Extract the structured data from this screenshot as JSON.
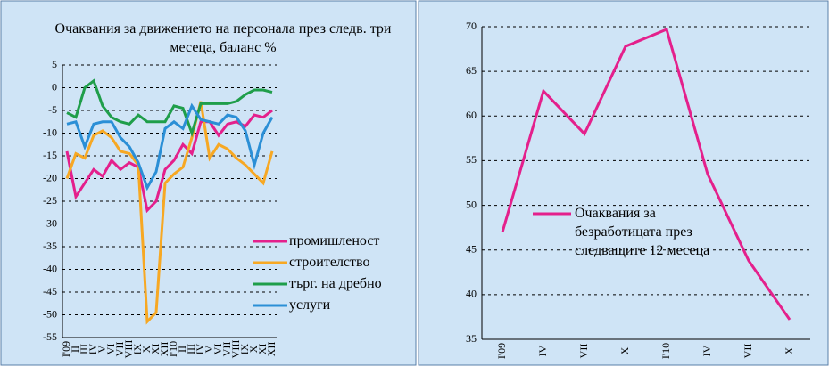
{
  "chart_data": [
    {
      "type": "line",
      "title": "Очаквания за движението на персонала през следв. три месеца, баланс %",
      "categories": [
        "I'09",
        "II",
        "III",
        "IV",
        "V",
        "VI",
        "VII",
        "VIII",
        "IX",
        "X",
        "XI",
        "XII",
        "I'10",
        "II",
        "III",
        "IV",
        "V",
        "VI",
        "VII",
        "VIII",
        "IX",
        "X",
        "XI",
        "XII"
      ],
      "series": [
        {
          "name": "промишленост",
          "color": "#e4208c",
          "values": [
            -14,
            -24,
            -21,
            -18,
            -19.5,
            -16,
            -18,
            -16.5,
            -17.5,
            -27,
            -25,
            -18,
            -16,
            -12.5,
            -14.5,
            -7.5,
            -7.5,
            -10.5,
            -8,
            -7.5,
            -8.5,
            -6,
            -6.5,
            -5
          ]
        },
        {
          "name": "строителство",
          "color": "#f7a823",
          "values": [
            -20,
            -14.5,
            -15.5,
            -10.5,
            -9.5,
            -11,
            -14,
            -14.5,
            -17,
            -51.5,
            -49.5,
            -21,
            -19,
            -17.5,
            -11,
            -3,
            -15.5,
            -12.5,
            -13.5,
            -15.5,
            -17,
            -19,
            -21,
            -14
          ]
        },
        {
          "name": "търг. на дребно",
          "color": "#1f9e4a",
          "values": [
            -5.5,
            -6.5,
            0,
            1.5,
            -4,
            -6.5,
            -7.5,
            -8,
            -6,
            -7.5,
            -7.5,
            -7.5,
            -4,
            -4.5,
            -10,
            -3.5,
            -3.5,
            -3.5,
            -3.5,
            -3,
            -1.5,
            -0.5,
            -0.5,
            -1
          ]
        },
        {
          "name": "услуги",
          "color": "#2b8fd6",
          "values": [
            -8,
            -7.5,
            -13,
            -8,
            -7.5,
            -7.5,
            -11,
            -13,
            -16.5,
            -22,
            -18.5,
            -9,
            -7.5,
            -9,
            -4,
            -7,
            -7.5,
            -8,
            -6,
            -6.5,
            -9.5,
            -17,
            -10,
            -6.5
          ]
        }
      ],
      "ylim": [
        -55,
        5
      ],
      "yticks": [
        5,
        0,
        -5,
        -10,
        -15,
        -20,
        -25,
        -30,
        -35,
        -40,
        -45,
        -50,
        -55
      ],
      "grid": true
    },
    {
      "type": "line",
      "categories": [
        "I'09",
        "IV",
        "VII",
        "X",
        "I'10",
        "IV",
        "VII",
        "X"
      ],
      "series": [
        {
          "name": "Очаквания за безработицата през следващите 12 месеца",
          "color": "#e4208c",
          "values": [
            47,
            62.8,
            58,
            67.8,
            69.7,
            53.5,
            43.8,
            37.2
          ]
        }
      ],
      "ylim": [
        35,
        70
      ],
      "yticks": [
        35,
        40,
        45,
        50,
        55,
        60,
        65,
        70
      ],
      "grid": true
    }
  ]
}
